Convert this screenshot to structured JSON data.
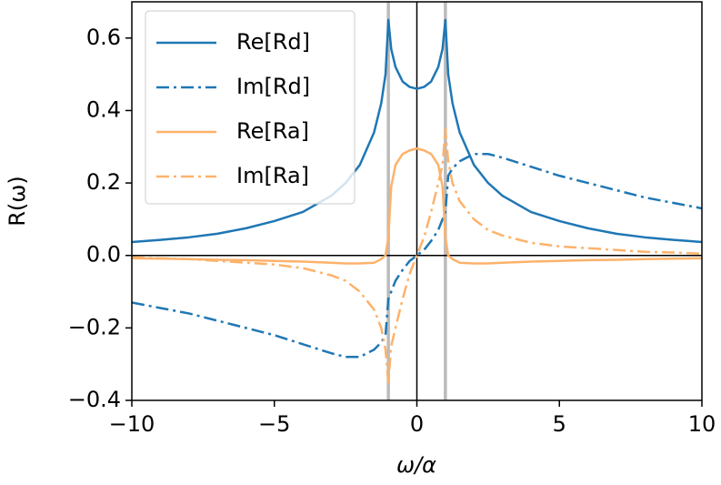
{
  "chart_data": {
    "type": "line",
    "xlabel": "ω/α",
    "ylabel": "R(ω)",
    "x": [
      -10,
      -9,
      -8,
      -7,
      -6,
      -5,
      -4,
      -3,
      -2.5,
      -2,
      -1.5,
      -1.25,
      -1.1,
      -1,
      -0.9,
      -0.75,
      -0.5,
      -0.25,
      0,
      0.25,
      0.5,
      0.75,
      0.9,
      1,
      1.1,
      1.25,
      1.5,
      2,
      2.5,
      3,
      4,
      5,
      6,
      7,
      8,
      9,
      10
    ],
    "series": [
      {
        "name": "Re[Rd]",
        "color": "#1f77b4",
        "style": "solid",
        "values": [
          0.037,
          0.043,
          0.05,
          0.06,
          0.075,
          0.095,
          0.12,
          0.165,
          0.2,
          0.25,
          0.34,
          0.42,
          0.5,
          0.65,
          0.57,
          0.52,
          0.48,
          0.465,
          0.46,
          0.465,
          0.48,
          0.52,
          0.57,
          0.65,
          0.5,
          0.42,
          0.34,
          0.25,
          0.2,
          0.165,
          0.12,
          0.095,
          0.075,
          0.06,
          0.05,
          0.043,
          0.037
        ]
      },
      {
        "name": "Im[Rd]",
        "color": "#1f77b4",
        "style": "dashdot",
        "values": [
          -0.13,
          -0.145,
          -0.16,
          -0.18,
          -0.2,
          -0.22,
          -0.245,
          -0.27,
          -0.28,
          -0.28,
          -0.26,
          -0.24,
          -0.22,
          -0.12,
          -0.1,
          -0.07,
          -0.04,
          -0.015,
          0,
          0.015,
          0.04,
          0.07,
          0.1,
          0.12,
          0.22,
          0.24,
          0.26,
          0.28,
          0.28,
          0.27,
          0.245,
          0.22,
          0.2,
          0.18,
          0.16,
          0.145,
          0.13
        ]
      },
      {
        "name": "Re[Ra]",
        "color": "#fdb26b",
        "style": "solid",
        "values": [
          -0.008,
          -0.009,
          -0.01,
          -0.012,
          -0.013,
          -0.015,
          -0.017,
          -0.02,
          -0.022,
          -0.022,
          -0.02,
          -0.01,
          0,
          0.05,
          0.19,
          0.25,
          0.28,
          0.29,
          0.295,
          0.29,
          0.28,
          0.25,
          0.19,
          0.05,
          0,
          -0.01,
          -0.02,
          -0.022,
          -0.022,
          -0.02,
          -0.017,
          -0.015,
          -0.013,
          -0.012,
          -0.01,
          -0.009,
          -0.008
        ]
      },
      {
        "name": "Im[Ra]",
        "color": "#fdb26b",
        "style": "dashdot",
        "values": [
          -0.005,
          -0.008,
          -0.01,
          -0.015,
          -0.02,
          -0.025,
          -0.035,
          -0.055,
          -0.07,
          -0.1,
          -0.15,
          -0.2,
          -0.26,
          -0.35,
          -0.25,
          -0.2,
          -0.12,
          -0.05,
          0,
          0.05,
          0.12,
          0.2,
          0.25,
          0.35,
          0.26,
          0.2,
          0.15,
          0.1,
          0.07,
          0.055,
          0.035,
          0.025,
          0.02,
          0.015,
          0.01,
          0.008,
          0.005
        ]
      }
    ],
    "xlim": [
      -10,
      10
    ],
    "ylim": [
      -0.4,
      0.7
    ],
    "xticks": [
      {
        "value": -10,
        "label": "−10"
      },
      {
        "value": -5,
        "label": "−5"
      },
      0,
      5,
      10
    ],
    "yticks": [
      {
        "value": -0.4,
        "label": "−0.4"
      },
      {
        "value": -0.2,
        "label": "−0.2"
      },
      {
        "value": 0,
        "label": "0.0"
      },
      0.2,
      0.4,
      0.6
    ],
    "vlines": [
      {
        "x": -1,
        "color": "#bbbbbb"
      },
      {
        "x": 1,
        "color": "#bbbbbb"
      },
      {
        "x": 0,
        "color": "#000000"
      }
    ],
    "hlines": [
      {
        "y": 0,
        "color": "#000000"
      }
    ],
    "legend": "upper left"
  }
}
